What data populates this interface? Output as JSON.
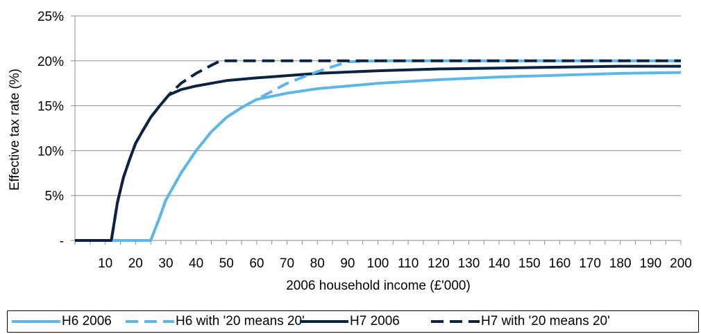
{
  "chart_data": {
    "type": "line",
    "title": "",
    "xlabel": "2006 household income (£'000)",
    "ylabel": "Effective tax rate (%)",
    "xlim": [
      0,
      200
    ],
    "ylim": [
      0,
      25
    ],
    "x_ticks": [
      10,
      20,
      30,
      40,
      50,
      60,
      70,
      80,
      90,
      100,
      110,
      120,
      130,
      140,
      150,
      160,
      170,
      180,
      190,
      200
    ],
    "x_tick_labels": [
      "10",
      "20",
      "30",
      "40",
      "50",
      "60",
      "70",
      "80",
      "90",
      "100",
      "110",
      "120",
      "130",
      "140",
      "150",
      "160",
      "170",
      "180",
      "190",
      "200"
    ],
    "y_ticks": [
      0,
      5,
      10,
      15,
      20,
      25
    ],
    "y_tick_labels": [
      "-",
      "5%",
      "10%",
      "15%",
      "20%",
      "25%"
    ],
    "grid": "horizontal",
    "legend_position": "bottom",
    "series": [
      {
        "name": "H6 2006",
        "color": "#5db6e5",
        "dash": "solid",
        "points": [
          [
            0,
            0
          ],
          [
            10,
            0
          ],
          [
            20,
            0
          ],
          [
            25,
            0
          ],
          [
            28,
            2.6
          ],
          [
            30,
            4.5
          ],
          [
            32,
            5.7
          ],
          [
            35,
            7.5
          ],
          [
            40,
            10.0
          ],
          [
            45,
            12.1
          ],
          [
            50,
            13.7
          ],
          [
            55,
            14.8
          ],
          [
            60,
            15.7
          ],
          [
            70,
            16.4
          ],
          [
            80,
            16.9
          ],
          [
            90,
            17.2
          ],
          [
            100,
            17.5
          ],
          [
            120,
            17.9
          ],
          [
            140,
            18.2
          ],
          [
            160,
            18.4
          ],
          [
            180,
            18.6
          ],
          [
            200,
            18.7
          ]
        ]
      },
      {
        "name": "H6 with '20 means 20'",
        "color": "#5db6e5",
        "dash": "dashed",
        "points": [
          [
            0,
            0
          ],
          [
            10,
            0
          ],
          [
            20,
            0
          ],
          [
            25,
            0
          ],
          [
            28,
            2.6
          ],
          [
            30,
            4.5
          ],
          [
            32,
            5.7
          ],
          [
            35,
            7.5
          ],
          [
            40,
            10.0
          ],
          [
            45,
            12.1
          ],
          [
            50,
            13.7
          ],
          [
            55,
            14.8
          ],
          [
            60,
            15.7
          ],
          [
            70,
            17.5
          ],
          [
            80,
            18.8
          ],
          [
            90,
            19.9
          ],
          [
            100,
            20.0
          ],
          [
            120,
            20.0
          ],
          [
            140,
            20.0
          ],
          [
            160,
            20.0
          ],
          [
            180,
            20.0
          ],
          [
            200,
            20.0
          ]
        ]
      },
      {
        "name": "H7 2006",
        "color": "#0b2341",
        "dash": "solid",
        "points": [
          [
            0,
            0
          ],
          [
            5,
            0
          ],
          [
            10,
            0
          ],
          [
            12,
            0
          ],
          [
            14,
            4.2
          ],
          [
            16,
            7.0
          ],
          [
            18,
            9.0
          ],
          [
            20,
            10.8
          ],
          [
            22,
            12.0
          ],
          [
            25,
            13.7
          ],
          [
            28,
            15.0
          ],
          [
            31,
            16.2
          ],
          [
            35,
            16.8
          ],
          [
            40,
            17.2
          ],
          [
            50,
            17.8
          ],
          [
            60,
            18.1
          ],
          [
            80,
            18.6
          ],
          [
            100,
            18.9
          ],
          [
            120,
            19.1
          ],
          [
            140,
            19.2
          ],
          [
            160,
            19.3
          ],
          [
            180,
            19.4
          ],
          [
            200,
            19.4
          ]
        ]
      },
      {
        "name": "H7 with '20 means 20'",
        "color": "#0b2341",
        "dash": "dashed",
        "points": [
          [
            0,
            0
          ],
          [
            5,
            0
          ],
          [
            10,
            0
          ],
          [
            12,
            0
          ],
          [
            14,
            4.2
          ],
          [
            16,
            7.0
          ],
          [
            18,
            9.0
          ],
          [
            20,
            10.8
          ],
          [
            22,
            12.0
          ],
          [
            25,
            13.7
          ],
          [
            28,
            15.0
          ],
          [
            31,
            16.2
          ],
          [
            35,
            17.5
          ],
          [
            40,
            18.6
          ],
          [
            45,
            19.5
          ],
          [
            48,
            20.0
          ],
          [
            60,
            20.0
          ],
          [
            80,
            20.0
          ],
          [
            100,
            20.0
          ],
          [
            120,
            20.0
          ],
          [
            140,
            20.0
          ],
          [
            160,
            20.0
          ],
          [
            180,
            20.0
          ],
          [
            200,
            20.0
          ]
        ]
      }
    ]
  }
}
